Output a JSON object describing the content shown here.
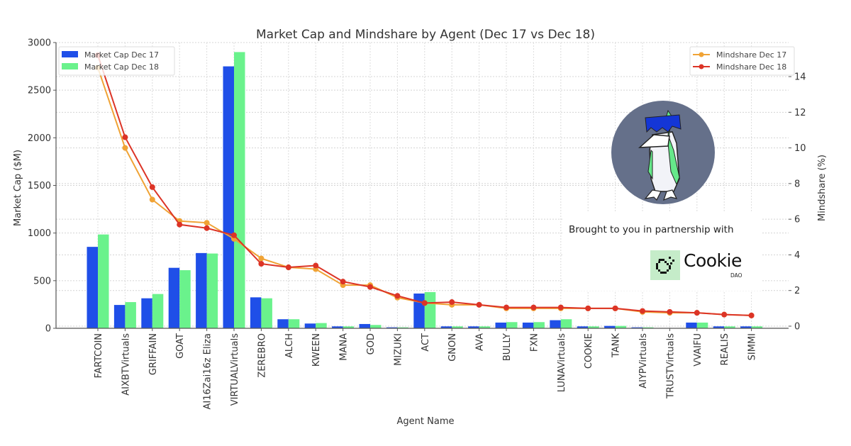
{
  "chart_data": {
    "type": "bar+line",
    "title": "Market Cap and Mindshare by Agent (Dec 17 vs Dec 18)",
    "xlabel": "Agent Name",
    "ylabel_left": "Market Cap ($M)",
    "ylabel_right": "Mindshare (%)",
    "ylim_left": [
      0,
      3000
    ],
    "ylim_right": [
      0,
      15.6
    ],
    "yticks_left": [
      "0",
      "500",
      "1000",
      "1500",
      "2000",
      "2500",
      "3000"
    ],
    "yticks_right": [
      "0",
      "2",
      "4",
      "6",
      "8",
      "10",
      "12",
      "14"
    ],
    "grid": true,
    "legend_left_position": "top-left",
    "legend_right_position": "top-right",
    "categories": [
      "FARTCOIN",
      "AIXBTVirtuals",
      "GRIFFAIN",
      "GOAT",
      "AI16Zai16z Eliza",
      "VIRTUALVirtuals",
      "ZEREBRO",
      "ALCH",
      "KWEEN",
      "MANA",
      "GOD",
      "MIZUKI",
      "ACT",
      "GNON",
      "AVA",
      "BULLY",
      "FXN",
      "LUNAVirtuals",
      "COOKIE",
      "TANK",
      "AIYPVirtuals",
      "TRUSTVirtuals",
      "VVAIFU",
      "REALIS",
      "SIMMI"
    ],
    "bar_series": [
      {
        "name": "Market Cap Dec 17",
        "color": "#1f4fe8",
        "values": [
          855,
          245,
          315,
          635,
          790,
          2750,
          325,
          95,
          50,
          20,
          45,
          10,
          365,
          20,
          20,
          60,
          60,
          85,
          20,
          25,
          10,
          0,
          60,
          20,
          20
        ]
      },
      {
        "name": "Market Cap Dec 18",
        "color": "#6af28c",
        "values": [
          985,
          275,
          360,
          610,
          785,
          2900,
          315,
          95,
          55,
          20,
          35,
          10,
          380,
          20,
          20,
          65,
          65,
          95,
          20,
          25,
          10,
          0,
          60,
          20,
          20
        ]
      }
    ],
    "line_series": [
      {
        "name": "Mindshare Dec 17",
        "color": "#f0a335",
        "values": [
          14.5,
          10.0,
          7.1,
          5.9,
          5.8,
          4.9,
          3.8,
          3.3,
          3.2,
          2.3,
          2.3,
          1.6,
          1.3,
          1.2,
          1.2,
          1.0,
          1.0,
          1.0,
          1.0,
          1.0,
          0.8,
          0.75,
          0.75,
          0.65,
          0.6
        ]
      },
      {
        "name": "Mindshare Dec 18",
        "color": "#dc3426",
        "values": [
          15.2,
          10.6,
          7.8,
          5.7,
          5.5,
          5.1,
          3.5,
          3.3,
          3.4,
          2.5,
          2.2,
          1.7,
          1.3,
          1.35,
          1.2,
          1.05,
          1.05,
          1.05,
          1.0,
          1.0,
          0.85,
          0.8,
          0.75,
          0.65,
          0.6
        ]
      }
    ]
  },
  "partner": {
    "text": "Brought to you in partnership with",
    "logo_word": "Cookie",
    "logo_sub": "DAO",
    "logo_bg": "#c5ecc9"
  }
}
